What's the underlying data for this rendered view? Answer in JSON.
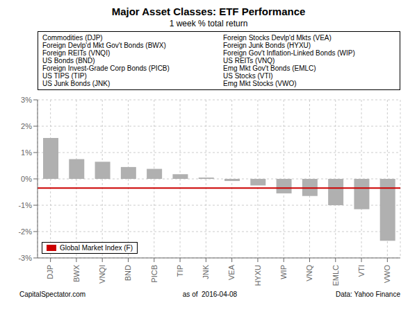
{
  "chart_data": {
    "type": "bar",
    "title": "Major Asset Classes: ETF Performance",
    "subtitle": "1 week % total return",
    "categories": [
      "DJP",
      "BWX",
      "VNQI",
      "BND",
      "PICB",
      "TIP",
      "JNK",
      "VEA",
      "HYXU",
      "WIP",
      "VNQ",
      "EMLC",
      "VTI",
      "VWO"
    ],
    "values": [
      1.55,
      0.75,
      0.65,
      0.45,
      0.38,
      0.18,
      0.05,
      -0.08,
      -0.25,
      -0.55,
      -0.65,
      -1.0,
      -1.15,
      -2.35
    ],
    "color": "#b0b0b0",
    "ylim": [
      -3.0,
      3.0
    ],
    "yticks": [
      {
        "value": -3.0,
        "label": "-3%"
      },
      {
        "value": -2.0,
        "label": "-2%"
      },
      {
        "value": -1.0,
        "label": "-1%"
      },
      {
        "value": 0.0,
        "label": "0%"
      },
      {
        "value": 1.0,
        "label": "1%"
      },
      {
        "value": 2.0,
        "label": "2%"
      },
      {
        "value": 3.0,
        "label": "3%"
      }
    ],
    "grid": true,
    "reference_line": {
      "name": "Global Market Index (F)",
      "value": -0.35,
      "color": "#cc0000"
    },
    "legend": "lower left",
    "annotations": {
      "left": [
        "Commodities (DJP)",
        "Foreign Devlp'd Mkt Gov't Bonds (BWX)",
        "Foreign REITs (VNQI)",
        "US Bonds (BND)",
        "Foreign Invest-Grade Corp Bonds (PICB)",
        "US TIPS (TIP)",
        "US Junk Bonds (JNK)"
      ],
      "right": [
        "Foreign Stocks Devlp'd Mkts (VEA)",
        "Foreign Junk Bonds (HYXU)",
        "Foreign Gov't Inflation-Linked Bonds (WIP)",
        "US REITs (VNQ)",
        "Emg Mkt Gov't Bonds (EMLC)",
        "US Stocks (VTI)",
        "Emg Mkt Stocks (VWO)"
      ]
    },
    "footer": {
      "left": "CapitalSpectator.com",
      "center": "as of  2016-04-08",
      "right": "Data: Yahoo Finance"
    }
  }
}
